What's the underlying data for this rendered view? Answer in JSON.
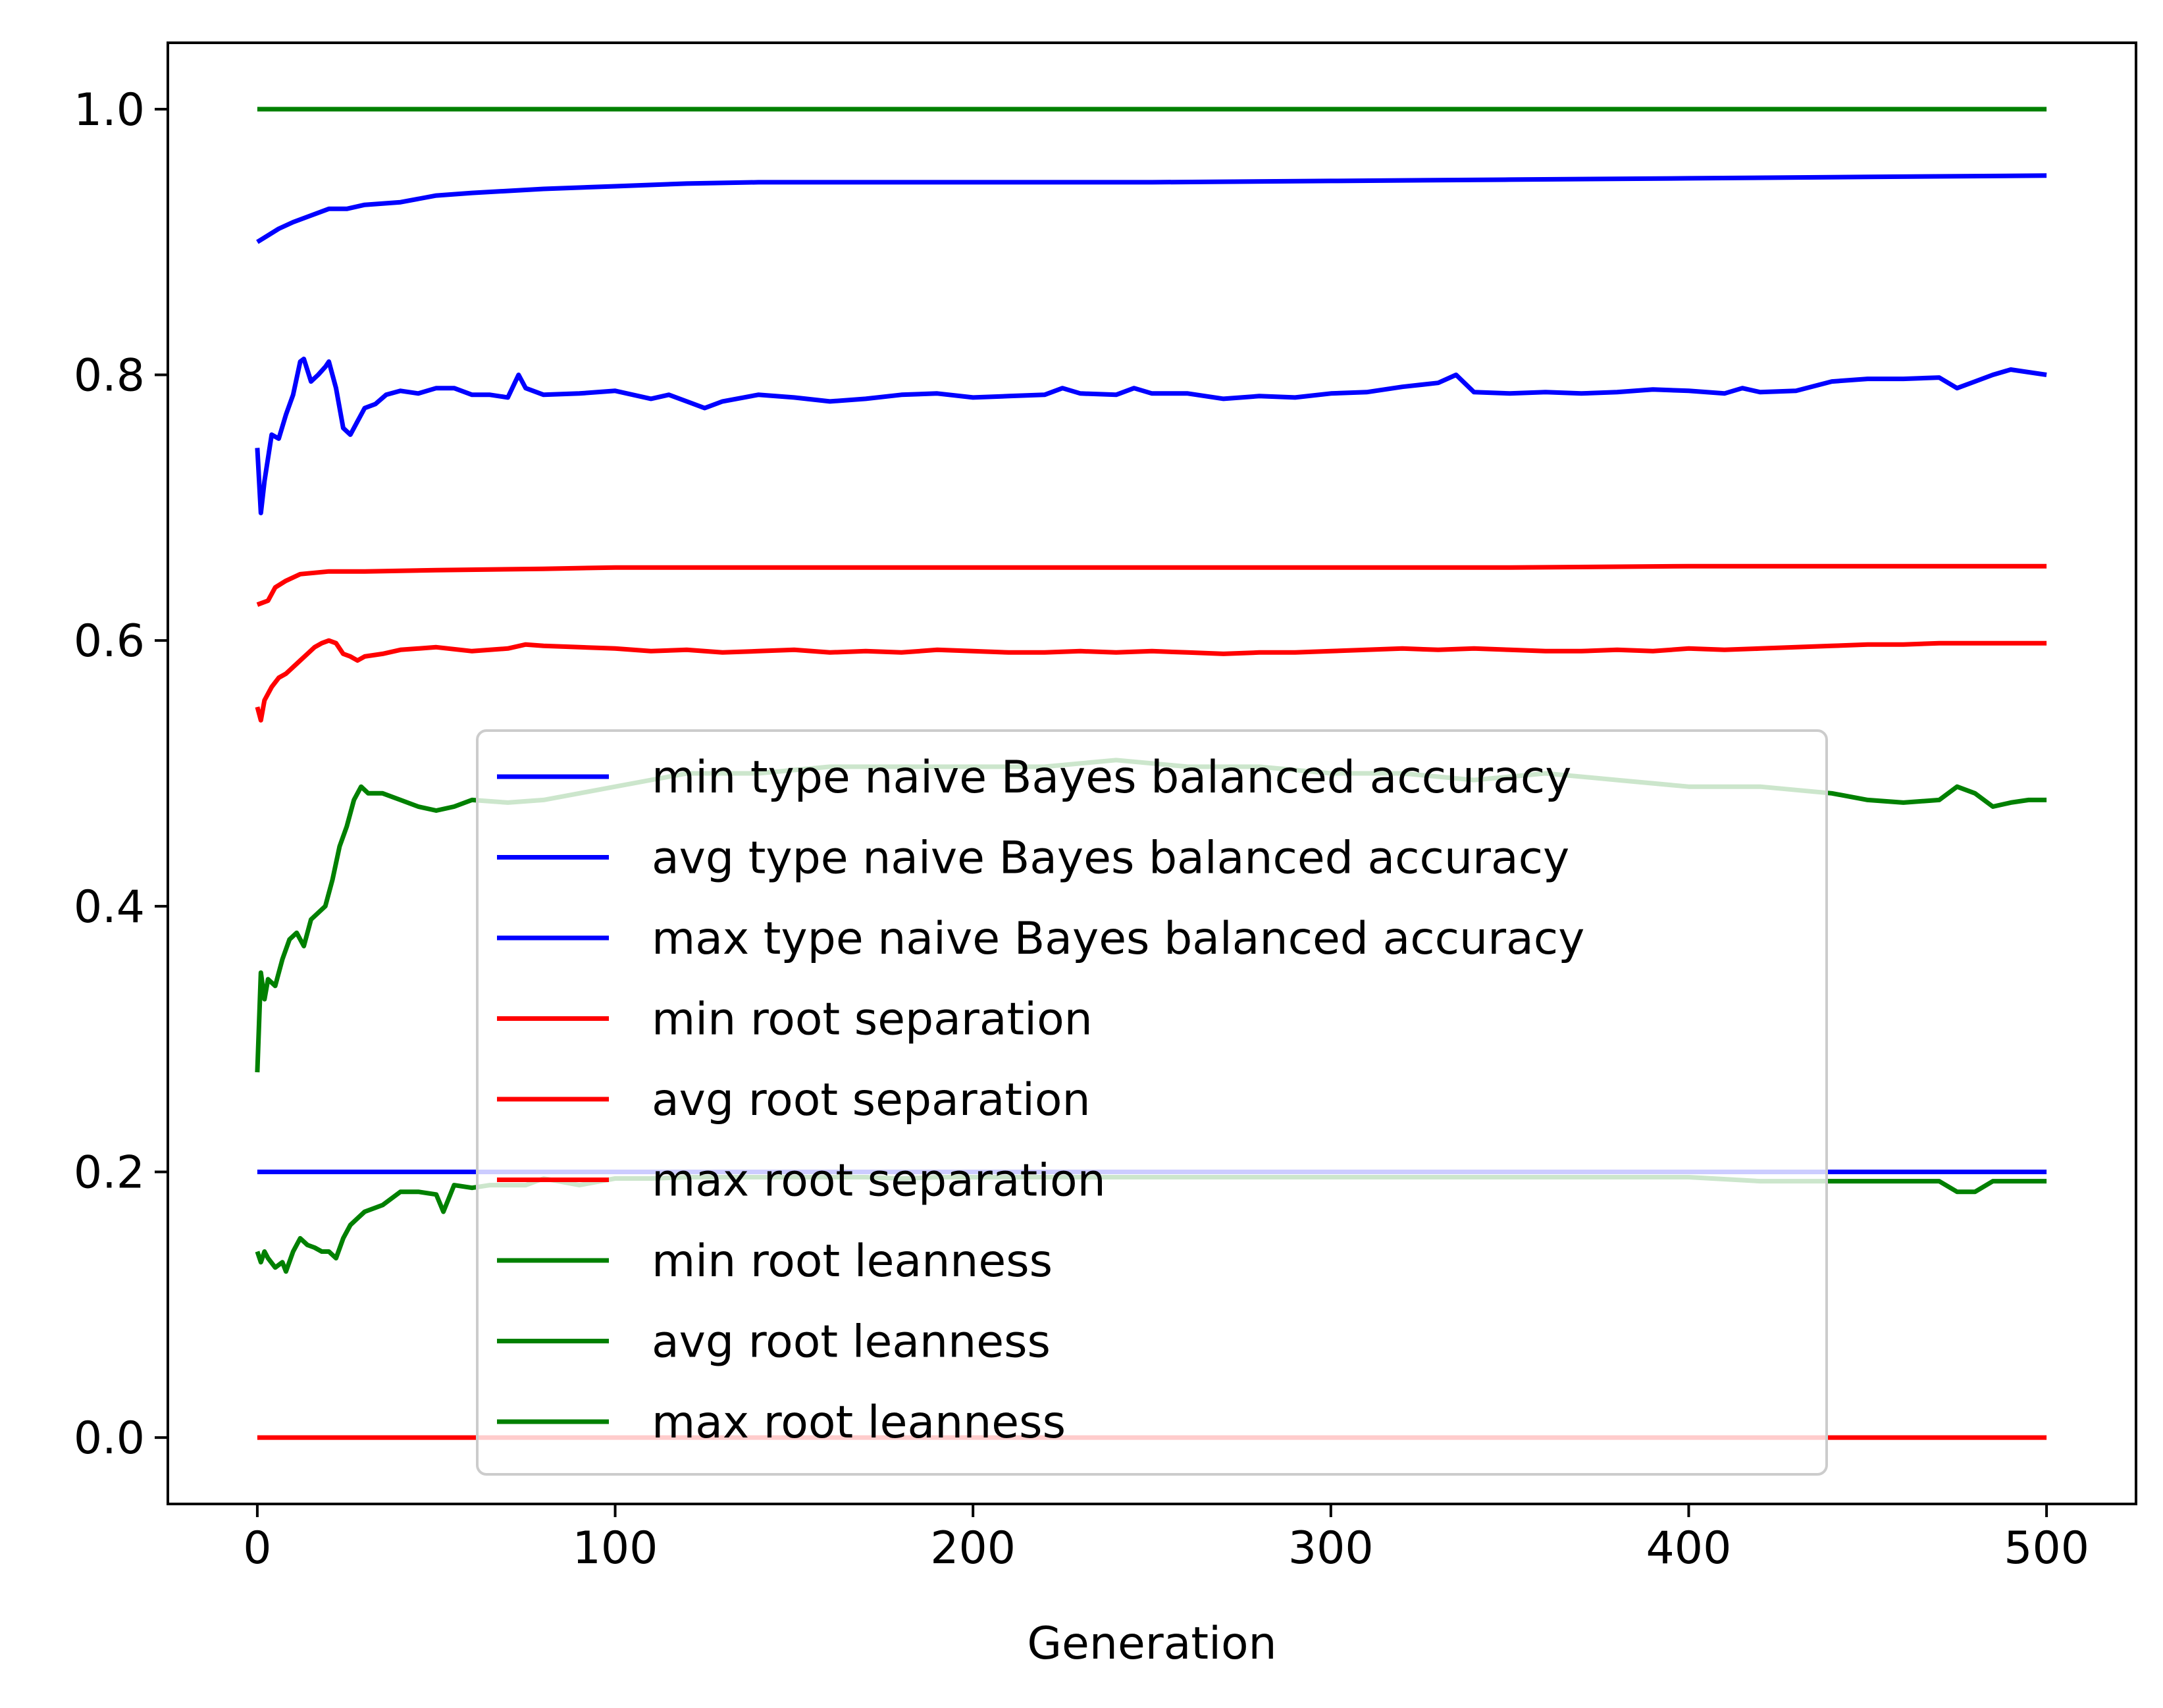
{
  "chart_data": {
    "type": "line",
    "title": "",
    "xlabel": "Generation",
    "ylabel": "",
    "xlim": [
      -25,
      525
    ],
    "ylim": [
      -0.05,
      1.05
    ],
    "xticks": [
      0,
      100,
      200,
      300,
      400,
      500
    ],
    "xtick_labels": [
      "0",
      "100",
      "200",
      "300",
      "400",
      "500"
    ],
    "yticks": [
      0.0,
      0.2,
      0.4,
      0.6,
      0.8,
      1.0
    ],
    "ytick_labels": [
      "0.0",
      "0.2",
      "0.4",
      "0.6",
      "0.8",
      "1.0"
    ],
    "grid": false,
    "legend_position": "lower center",
    "series": [
      {
        "name": "min type naive Bayes balanced accuracy",
        "color": "#0000ff",
        "x": [
          0,
          500
        ],
        "y": [
          0.2,
          0.2
        ]
      },
      {
        "name": "avg type naive Bayes balanced accuracy",
        "color": "#0000ff",
        "x": [
          0,
          1,
          2,
          4,
          6,
          8,
          10,
          12,
          13,
          15,
          17,
          19,
          20,
          22,
          24,
          26,
          28,
          30,
          33,
          36,
          40,
          45,
          50,
          55,
          60,
          65,
          70,
          73,
          75,
          80,
          90,
          100,
          110,
          115,
          120,
          125,
          130,
          140,
          150,
          160,
          170,
          180,
          190,
          200,
          210,
          220,
          225,
          230,
          240,
          245,
          250,
          260,
          270,
          275,
          280,
          290,
          300,
          310,
          320,
          330,
          335,
          340,
          350,
          360,
          370,
          380,
          390,
          400,
          410,
          415,
          420,
          430,
          440,
          450,
          460,
          470,
          475,
          480,
          485,
          490,
          495,
          500
        ],
        "y": [
          0.745,
          0.696,
          0.72,
          0.755,
          0.752,
          0.77,
          0.785,
          0.81,
          0.812,
          0.795,
          0.8,
          0.806,
          0.81,
          0.79,
          0.76,
          0.755,
          0.765,
          0.775,
          0.778,
          0.785,
          0.788,
          0.786,
          0.79,
          0.79,
          0.785,
          0.785,
          0.783,
          0.8,
          0.79,
          0.785,
          0.786,
          0.788,
          0.782,
          0.785,
          0.78,
          0.775,
          0.78,
          0.785,
          0.783,
          0.78,
          0.782,
          0.785,
          0.786,
          0.783,
          0.784,
          0.785,
          0.79,
          0.786,
          0.785,
          0.79,
          0.786,
          0.786,
          0.782,
          0.783,
          0.784,
          0.783,
          0.786,
          0.787,
          0.791,
          0.794,
          0.8,
          0.787,
          0.786,
          0.787,
          0.786,
          0.787,
          0.789,
          0.788,
          0.786,
          0.79,
          0.787,
          0.788,
          0.795,
          0.797,
          0.797,
          0.798,
          0.79,
          0.795,
          0.8,
          0.804,
          0.802,
          0.8
        ]
      },
      {
        "name": "max type naive Bayes balanced accuracy",
        "color": "#0000ff",
        "x": [
          0,
          3,
          6,
          10,
          15,
          20,
          25,
          30,
          40,
          50,
          60,
          80,
          100,
          120,
          140,
          160,
          200,
          250,
          300,
          350,
          400,
          450,
          500
        ],
        "y": [
          0.9,
          0.905,
          0.91,
          0.915,
          0.92,
          0.925,
          0.925,
          0.928,
          0.93,
          0.935,
          0.937,
          0.94,
          0.942,
          0.944,
          0.945,
          0.945,
          0.945,
          0.945,
          0.946,
          0.947,
          0.948,
          0.949,
          0.95
        ]
      },
      {
        "name": "min root separation",
        "color": "#ff0000",
        "x": [
          0,
          500
        ],
        "y": [
          0.0,
          0.0
        ]
      },
      {
        "name": "avg root separation",
        "color": "#ff0000",
        "x": [
          0,
          1,
          2,
          4,
          6,
          8,
          10,
          12,
          14,
          16,
          18,
          20,
          22,
          24,
          26,
          28,
          30,
          35,
          40,
          50,
          60,
          70,
          75,
          80,
          90,
          100,
          110,
          120,
          130,
          140,
          150,
          160,
          170,
          180,
          190,
          200,
          210,
          220,
          230,
          240,
          250,
          260,
          270,
          280,
          290,
          300,
          310,
          320,
          330,
          340,
          350,
          360,
          370,
          380,
          390,
          400,
          410,
          420,
          430,
          440,
          450,
          460,
          470,
          480,
          490,
          500
        ],
        "y": [
          0.55,
          0.54,
          0.555,
          0.565,
          0.572,
          0.575,
          0.58,
          0.585,
          0.59,
          0.595,
          0.598,
          0.6,
          0.598,
          0.59,
          0.588,
          0.585,
          0.588,
          0.59,
          0.593,
          0.595,
          0.592,
          0.594,
          0.597,
          0.596,
          0.595,
          0.594,
          0.592,
          0.593,
          0.591,
          0.592,
          0.593,
          0.591,
          0.592,
          0.591,
          0.593,
          0.592,
          0.591,
          0.591,
          0.592,
          0.591,
          0.592,
          0.591,
          0.59,
          0.591,
          0.591,
          0.592,
          0.593,
          0.594,
          0.593,
          0.594,
          0.593,
          0.592,
          0.592,
          0.593,
          0.592,
          0.594,
          0.593,
          0.594,
          0.595,
          0.596,
          0.597,
          0.597,
          0.598,
          0.598,
          0.598,
          0.598
        ]
      },
      {
        "name": "max root separation",
        "color": "#ff0000",
        "x": [
          0,
          3,
          5,
          8,
          12,
          20,
          30,
          50,
          80,
          100,
          150,
          200,
          250,
          300,
          350,
          400,
          450,
          500
        ],
        "y": [
          0.627,
          0.63,
          0.64,
          0.645,
          0.65,
          0.652,
          0.652,
          0.653,
          0.654,
          0.655,
          0.655,
          0.655,
          0.655,
          0.655,
          0.655,
          0.656,
          0.656,
          0.656
        ]
      },
      {
        "name": "min root leanness",
        "color": "#008000",
        "x": [
          0,
          1,
          2,
          3,
          5,
          7,
          8,
          10,
          12,
          14,
          16,
          18,
          20,
          22,
          24,
          26,
          28,
          30,
          35,
          40,
          45,
          50,
          52,
          55,
          60,
          65,
          70,
          75,
          80,
          90,
          100,
          110,
          120,
          130,
          140,
          150,
          160,
          170,
          180,
          190,
          200,
          220,
          240,
          260,
          280,
          300,
          320,
          340,
          345,
          350,
          360,
          380,
          400,
          420,
          430,
          440,
          450,
          460,
          470,
          475,
          480,
          485,
          490,
          500
        ],
        "y": [
          0.14,
          0.132,
          0.14,
          0.135,
          0.128,
          0.132,
          0.125,
          0.14,
          0.15,
          0.145,
          0.143,
          0.14,
          0.14,
          0.135,
          0.15,
          0.16,
          0.165,
          0.17,
          0.175,
          0.185,
          0.185,
          0.183,
          0.17,
          0.19,
          0.188,
          0.19,
          0.19,
          0.19,
          0.195,
          0.19,
          0.195,
          0.195,
          0.196,
          0.196,
          0.196,
          0.196,
          0.196,
          0.196,
          0.195,
          0.196,
          0.196,
          0.196,
          0.196,
          0.196,
          0.196,
          0.196,
          0.196,
          0.196,
          0.196,
          0.196,
          0.196,
          0.196,
          0.196,
          0.193,
          0.193,
          0.193,
          0.193,
          0.193,
          0.193,
          0.185,
          0.185,
          0.193,
          0.193,
          0.193
        ]
      },
      {
        "name": "avg root leanness",
        "color": "#008000",
        "x": [
          0,
          1,
          2,
          3,
          5,
          7,
          9,
          11,
          13,
          15,
          17,
          19,
          21,
          23,
          25,
          27,
          29,
          31,
          35,
          40,
          45,
          50,
          55,
          60,
          70,
          80,
          90,
          100,
          110,
          120,
          140,
          160,
          180,
          200,
          220,
          240,
          260,
          280,
          300,
          320,
          340,
          360,
          380,
          400,
          420,
          440,
          450,
          460,
          470,
          475,
          480,
          485,
          490,
          495,
          500
        ],
        "y": [
          0.275,
          0.35,
          0.33,
          0.345,
          0.34,
          0.36,
          0.375,
          0.38,
          0.37,
          0.39,
          0.395,
          0.4,
          0.42,
          0.445,
          0.46,
          0.48,
          0.49,
          0.485,
          0.485,
          0.48,
          0.475,
          0.472,
          0.475,
          0.48,
          0.478,
          0.48,
          0.485,
          0.49,
          0.495,
          0.5,
          0.5,
          0.505,
          0.505,
          0.505,
          0.505,
          0.51,
          0.505,
          0.505,
          0.5,
          0.5,
          0.495,
          0.5,
          0.495,
          0.49,
          0.49,
          0.485,
          0.48,
          0.478,
          0.48,
          0.49,
          0.485,
          0.475,
          0.478,
          0.48,
          0.48
        ]
      },
      {
        "name": "max root leanness",
        "color": "#008000",
        "x": [
          0,
          500
        ],
        "y": [
          1.0,
          1.0
        ]
      }
    ]
  }
}
